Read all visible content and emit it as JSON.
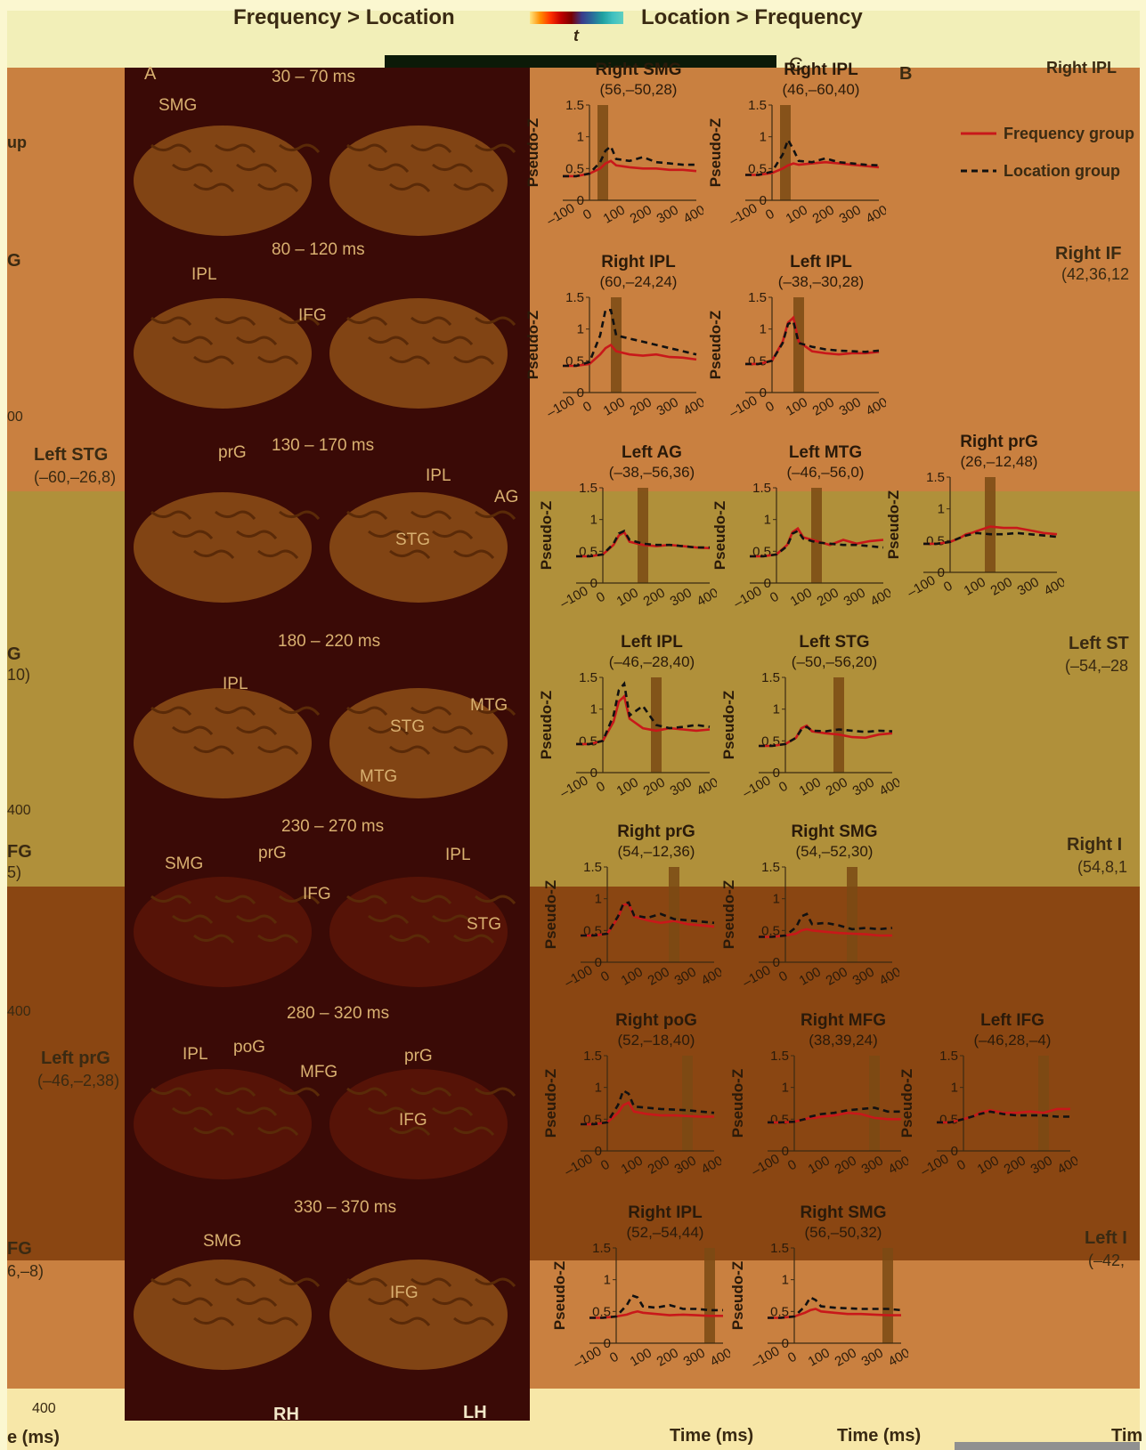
{
  "header": {
    "left_label": "Frequency > Location",
    "right_label": "Location > Frequency",
    "colorbar_label": "t",
    "colorbar_colors": [
      "#ff3b00",
      "#ff7a00",
      "#ffb000",
      "#ff0000",
      "#9b0000",
      "#3a3a8a",
      "#2a6b9a",
      "#1a8a8a",
      "#20a0a0",
      "#40c0c0"
    ]
  },
  "panel_letters": {
    "a": "A",
    "b": "B",
    "c": "C"
  },
  "colors": {
    "frequency": "#c8181a",
    "location": "#111111",
    "window": "#7a4a14",
    "panel_orange": "#c98040",
    "panel_khaki": "#b0903a",
    "panel_rust": "#8a4612",
    "brain_dark": "#3a0a06",
    "brain_surface": "#8a4a16",
    "label_gold": "#d9b070"
  },
  "legend": {
    "frequency": "Frequency group",
    "location": "Location group"
  },
  "brain": {
    "hemispheres": {
      "right": "RH",
      "left": "LH"
    },
    "rows": [
      {
        "window": "30 – 70 ms",
        "labels": [
          "SMG"
        ]
      },
      {
        "window": "80 – 120 ms",
        "labels": [
          "IPL",
          "IFG"
        ]
      },
      {
        "window": "130 – 170 ms",
        "labels": [
          "prG",
          "IPL",
          "AG",
          "STG"
        ]
      },
      {
        "window": "180 – 220 ms",
        "labels": [
          "IPL",
          "MTG",
          "STG",
          "MTG"
        ]
      },
      {
        "window": "230 – 270 ms",
        "labels": [
          "SMG",
          "prG",
          "IPL",
          "IFG",
          "STG"
        ]
      },
      {
        "window": "280 – 320 ms",
        "labels": [
          "IPL",
          "poG",
          "prG",
          "MFG",
          "IFG"
        ]
      },
      {
        "window": "330 – 370 ms",
        "labels": [
          "SMG",
          "IFG"
        ]
      }
    ]
  },
  "axes": {
    "ylabel": "Pseudo-Z",
    "xlabel": "Time (ms)",
    "yticks": [
      "0",
      "0.5",
      "1",
      "1.5"
    ],
    "xticks": [
      "–100",
      "0",
      "100",
      "200",
      "300",
      "400"
    ]
  },
  "left_strip": {
    "row_labels": [
      {
        "title": "Left STG",
        "coords": "(–60,–26,8)"
      },
      {
        "title": "Left prG",
        "coords": "(–46,–2,38)"
      }
    ],
    "partial_text": [
      "up",
      "G",
      "G",
      "10)",
      "FG",
      "5)",
      "FG",
      "6,–8)",
      "00",
      "400",
      "400",
      "400",
      "e (ms)"
    ]
  },
  "right_strip": {
    "partial_text": [
      "Right IPL",
      "Right IF",
      "(42,36,12",
      "Left ST",
      "(–54,–28",
      "Right I",
      "(54,8,1",
      "Left I",
      "(–42,",
      "Tim"
    ]
  },
  "chart_data": [
    {
      "type": "line",
      "title": "Right SMG",
      "subtitle": "(56,–50,28)",
      "window": [
        30,
        70
      ],
      "x": [
        -100,
        -50,
        0,
        40,
        60,
        80,
        100,
        150,
        200,
        250,
        300,
        350,
        400
      ],
      "series": [
        {
          "name": "Frequency group",
          "values": [
            0.38,
            0.38,
            0.42,
            0.5,
            0.58,
            0.62,
            0.55,
            0.52,
            0.5,
            0.5,
            0.48,
            0.48,
            0.46
          ]
        },
        {
          "name": "Location group",
          "values": [
            0.38,
            0.38,
            0.42,
            0.6,
            0.78,
            0.85,
            0.65,
            0.62,
            0.68,
            0.6,
            0.58,
            0.56,
            0.56
          ]
        }
      ]
    },
    {
      "type": "line",
      "title": "Right IPL",
      "subtitle": "(46,–60,40)",
      "window": [
        30,
        70
      ],
      "x": [
        -100,
        -50,
        0,
        40,
        60,
        80,
        100,
        150,
        200,
        250,
        300,
        350,
        400
      ],
      "series": [
        {
          "name": "Frequency group",
          "values": [
            0.4,
            0.4,
            0.43,
            0.5,
            0.55,
            0.58,
            0.56,
            0.58,
            0.6,
            0.58,
            0.56,
            0.54,
            0.52
          ]
        },
        {
          "name": "Location group",
          "values": [
            0.4,
            0.4,
            0.45,
            0.72,
            0.95,
            0.8,
            0.62,
            0.6,
            0.66,
            0.6,
            0.58,
            0.56,
            0.55
          ]
        }
      ]
    },
    {
      "type": "line",
      "title": "Right IPL",
      "subtitle": "(60,–24,24)",
      "window": [
        80,
        120
      ],
      "x": [
        -100,
        -50,
        0,
        40,
        60,
        80,
        100,
        150,
        200,
        250,
        300,
        350,
        400
      ],
      "series": [
        {
          "name": "Frequency group",
          "values": [
            0.42,
            0.42,
            0.45,
            0.6,
            0.7,
            0.75,
            0.65,
            0.6,
            0.58,
            0.6,
            0.56,
            0.55,
            0.52
          ]
        },
        {
          "name": "Location group",
          "values": [
            0.42,
            0.42,
            0.48,
            0.9,
            1.3,
            1.3,
            0.9,
            0.85,
            0.8,
            0.75,
            0.7,
            0.65,
            0.6
          ]
        }
      ]
    },
    {
      "type": "line",
      "title": "Left IPL",
      "subtitle": "(–38,–30,28)",
      "window": [
        80,
        120
      ],
      "x": [
        -100,
        -50,
        0,
        40,
        60,
        80,
        100,
        150,
        200,
        250,
        300,
        350,
        400
      ],
      "series": [
        {
          "name": "Frequency group",
          "values": [
            0.45,
            0.45,
            0.5,
            0.8,
            1.1,
            1.18,
            0.8,
            0.65,
            0.62,
            0.6,
            0.62,
            0.62,
            0.64
          ]
        },
        {
          "name": "Location group",
          "values": [
            0.45,
            0.45,
            0.5,
            0.78,
            1.08,
            1.12,
            0.78,
            0.72,
            0.68,
            0.66,
            0.65,
            0.64,
            0.66
          ]
        }
      ]
    },
    {
      "type": "line",
      "title": "Left AG",
      "subtitle": "(–38,–56,36)",
      "window": [
        130,
        170
      ],
      "x": [
        -100,
        -50,
        0,
        40,
        60,
        80,
        100,
        150,
        200,
        250,
        300,
        350,
        400
      ],
      "series": [
        {
          "name": "Frequency group",
          "values": [
            0.42,
            0.42,
            0.45,
            0.6,
            0.75,
            0.8,
            0.65,
            0.6,
            0.58,
            0.6,
            0.58,
            0.56,
            0.55
          ]
        },
        {
          "name": "Location group",
          "values": [
            0.42,
            0.42,
            0.45,
            0.62,
            0.78,
            0.82,
            0.68,
            0.62,
            0.6,
            0.6,
            0.58,
            0.56,
            0.56
          ]
        }
      ]
    },
    {
      "type": "line",
      "title": "Left MTG",
      "subtitle": "(–46,–56,0)",
      "window": [
        130,
        170
      ],
      "x": [
        -100,
        -50,
        0,
        40,
        60,
        80,
        100,
        150,
        200,
        250,
        300,
        350,
        400
      ],
      "series": [
        {
          "name": "Frequency group",
          "values": [
            0.42,
            0.42,
            0.45,
            0.6,
            0.8,
            0.86,
            0.72,
            0.66,
            0.6,
            0.68,
            0.62,
            0.66,
            0.68
          ]
        },
        {
          "name": "Location group",
          "values": [
            0.42,
            0.42,
            0.45,
            0.58,
            0.78,
            0.82,
            0.7,
            0.64,
            0.62,
            0.6,
            0.6,
            0.58,
            0.56
          ]
        }
      ]
    },
    {
      "type": "line",
      "title": "Right prG",
      "subtitle": "(26,–12,48)",
      "window": [
        130,
        170
      ],
      "x": [
        -100,
        -50,
        0,
        40,
        60,
        80,
        100,
        150,
        200,
        250,
        300,
        350,
        400
      ],
      "series": [
        {
          "name": "Frequency group",
          "values": [
            0.45,
            0.45,
            0.48,
            0.55,
            0.6,
            0.62,
            0.65,
            0.72,
            0.7,
            0.7,
            0.66,
            0.62,
            0.6
          ]
        },
        {
          "name": "Location group",
          "values": [
            0.45,
            0.45,
            0.48,
            0.55,
            0.58,
            0.6,
            0.62,
            0.6,
            0.6,
            0.62,
            0.6,
            0.58,
            0.56
          ]
        }
      ]
    },
    {
      "type": "line",
      "title": "Left IPL",
      "subtitle": "(–46,–28,40)",
      "window": [
        180,
        220
      ],
      "x": [
        -100,
        -50,
        0,
        40,
        60,
        80,
        100,
        150,
        200,
        250,
        300,
        350,
        400
      ],
      "series": [
        {
          "name": "Frequency group",
          "values": [
            0.45,
            0.45,
            0.5,
            0.8,
            1.12,
            1.2,
            0.85,
            0.7,
            0.66,
            0.7,
            0.68,
            0.66,
            0.68
          ]
        },
        {
          "name": "Location group",
          "values": [
            0.45,
            0.45,
            0.5,
            0.9,
            1.3,
            1.4,
            0.9,
            1.05,
            0.75,
            0.7,
            0.72,
            0.75,
            0.72
          ]
        }
      ]
    },
    {
      "type": "line",
      "title": "Left STG",
      "subtitle": "(–50,–56,20)",
      "window": [
        180,
        220
      ],
      "x": [
        -100,
        -50,
        0,
        40,
        60,
        80,
        100,
        150,
        200,
        250,
        300,
        350,
        400
      ],
      "series": [
        {
          "name": "Frequency group",
          "values": [
            0.42,
            0.42,
            0.45,
            0.55,
            0.7,
            0.74,
            0.65,
            0.62,
            0.6,
            0.56,
            0.55,
            0.6,
            0.62
          ]
        },
        {
          "name": "Location group",
          "values": [
            0.42,
            0.42,
            0.45,
            0.55,
            0.68,
            0.72,
            0.66,
            0.65,
            0.68,
            0.66,
            0.64,
            0.66,
            0.65
          ]
        }
      ]
    },
    {
      "type": "line",
      "title": "Right prG",
      "subtitle": "(54,–12,36)",
      "window": [
        230,
        270
      ],
      "x": [
        -100,
        -50,
        0,
        40,
        60,
        80,
        100,
        150,
        200,
        250,
        300,
        350,
        400
      ],
      "series": [
        {
          "name": "Frequency group",
          "values": [
            0.42,
            0.42,
            0.45,
            0.7,
            0.9,
            0.92,
            0.72,
            0.66,
            0.62,
            0.65,
            0.6,
            0.58,
            0.56
          ]
        },
        {
          "name": "Location group",
          "values": [
            0.42,
            0.42,
            0.45,
            0.72,
            0.92,
            0.94,
            0.74,
            0.7,
            0.76,
            0.68,
            0.66,
            0.64,
            0.62
          ]
        }
      ]
    },
    {
      "type": "line",
      "title": "Right SMG",
      "subtitle": "(54,–52,30)",
      "window": [
        230,
        270
      ],
      "x": [
        -100,
        -50,
        0,
        40,
        60,
        80,
        100,
        150,
        200,
        250,
        300,
        350,
        400
      ],
      "series": [
        {
          "name": "Frequency group",
          "values": [
            0.4,
            0.4,
            0.42,
            0.45,
            0.5,
            0.52,
            0.5,
            0.48,
            0.46,
            0.45,
            0.44,
            0.42,
            0.42
          ]
        },
        {
          "name": "Location group",
          "values": [
            0.4,
            0.4,
            0.42,
            0.55,
            0.72,
            0.76,
            0.6,
            0.62,
            0.58,
            0.52,
            0.54,
            0.52,
            0.54
          ]
        }
      ]
    },
    {
      "type": "line",
      "title": "Right poG",
      "subtitle": "(52,–18,40)",
      "window": [
        280,
        320
      ],
      "x": [
        -100,
        -50,
        0,
        40,
        60,
        80,
        100,
        150,
        200,
        250,
        300,
        350,
        400
      ],
      "series": [
        {
          "name": "Frequency group",
          "values": [
            0.42,
            0.42,
            0.45,
            0.6,
            0.72,
            0.76,
            0.62,
            0.58,
            0.56,
            0.56,
            0.55,
            0.54,
            0.54
          ]
        },
        {
          "name": "Location group",
          "values": [
            0.42,
            0.42,
            0.45,
            0.72,
            0.95,
            0.9,
            0.7,
            0.68,
            0.66,
            0.65,
            0.64,
            0.62,
            0.6
          ]
        }
      ]
    },
    {
      "type": "line",
      "title": "Right MFG",
      "subtitle": "(38,39,24)",
      "window": [
        280,
        320
      ],
      "x": [
        -100,
        -50,
        0,
        40,
        60,
        80,
        100,
        150,
        200,
        250,
        300,
        350,
        400
      ],
      "series": [
        {
          "name": "Frequency group",
          "values": [
            0.45,
            0.45,
            0.46,
            0.5,
            0.52,
            0.52,
            0.54,
            0.56,
            0.6,
            0.58,
            0.52,
            0.5,
            0.5
          ]
        },
        {
          "name": "Location group",
          "values": [
            0.45,
            0.45,
            0.46,
            0.5,
            0.54,
            0.56,
            0.58,
            0.6,
            0.64,
            0.66,
            0.68,
            0.62,
            0.62
          ]
        }
      ]
    },
    {
      "type": "line",
      "title": "Left IFG",
      "subtitle": "(–46,28,–4)",
      "window": [
        280,
        320
      ],
      "x": [
        -100,
        -50,
        0,
        40,
        60,
        80,
        100,
        150,
        200,
        250,
        300,
        350,
        400
      ],
      "series": [
        {
          "name": "Frequency group",
          "values": [
            0.45,
            0.45,
            0.5,
            0.55,
            0.6,
            0.62,
            0.64,
            0.6,
            0.6,
            0.62,
            0.6,
            0.66,
            0.66
          ]
        },
        {
          "name": "Location group",
          "values": [
            0.45,
            0.45,
            0.5,
            0.55,
            0.58,
            0.6,
            0.62,
            0.58,
            0.56,
            0.56,
            0.56,
            0.54,
            0.54
          ]
        }
      ]
    },
    {
      "type": "line",
      "title": "Right IPL",
      "subtitle": "(52,–54,44)",
      "window": [
        330,
        370
      ],
      "x": [
        -100,
        -50,
        0,
        40,
        60,
        80,
        100,
        150,
        200,
        250,
        300,
        350,
        400
      ],
      "series": [
        {
          "name": "Frequency group",
          "values": [
            0.4,
            0.4,
            0.42,
            0.45,
            0.48,
            0.5,
            0.48,
            0.46,
            0.44,
            0.45,
            0.44,
            0.43,
            0.43
          ]
        },
        {
          "name": "Location group",
          "values": [
            0.4,
            0.4,
            0.42,
            0.6,
            0.75,
            0.72,
            0.58,
            0.56,
            0.6,
            0.54,
            0.54,
            0.52,
            0.52
          ]
        }
      ]
    },
    {
      "type": "line",
      "title": "Right SMG",
      "subtitle": "(56,–50,32)",
      "window": [
        330,
        370
      ],
      "x": [
        -100,
        -50,
        0,
        40,
        60,
        80,
        100,
        150,
        200,
        250,
        300,
        350,
        400
      ],
      "series": [
        {
          "name": "Frequency group",
          "values": [
            0.4,
            0.4,
            0.42,
            0.48,
            0.52,
            0.54,
            0.5,
            0.48,
            0.46,
            0.46,
            0.45,
            0.44,
            0.44
          ]
        },
        {
          "name": "Location group",
          "values": [
            0.4,
            0.4,
            0.42,
            0.58,
            0.72,
            0.68,
            0.58,
            0.56,
            0.55,
            0.54,
            0.54,
            0.54,
            0.52
          ]
        }
      ]
    }
  ]
}
